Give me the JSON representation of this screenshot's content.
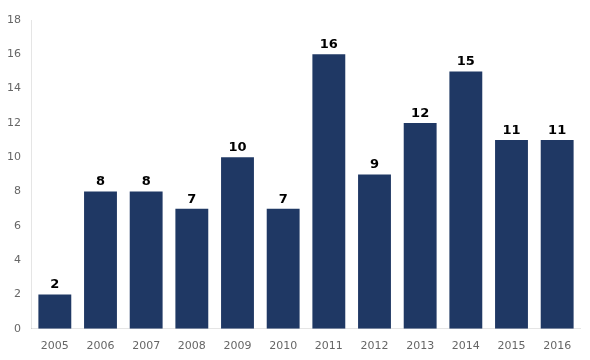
{
  "chart_data": {
    "type": "bar",
    "categories": [
      "2005",
      "2006",
      "2007",
      "2008",
      "2009",
      "2010",
      "2011",
      "2012",
      "2013",
      "2014",
      "2015",
      "2016"
    ],
    "values": [
      2,
      8,
      8,
      7,
      10,
      7,
      16,
      9,
      12,
      15,
      11,
      11
    ],
    "color": "#1F3864",
    "ylim": [
      0,
      18
    ],
    "yticks": [
      0,
      2,
      4,
      6,
      8,
      10,
      12,
      14,
      16,
      18
    ],
    "grid": false,
    "data_labels": true
  }
}
